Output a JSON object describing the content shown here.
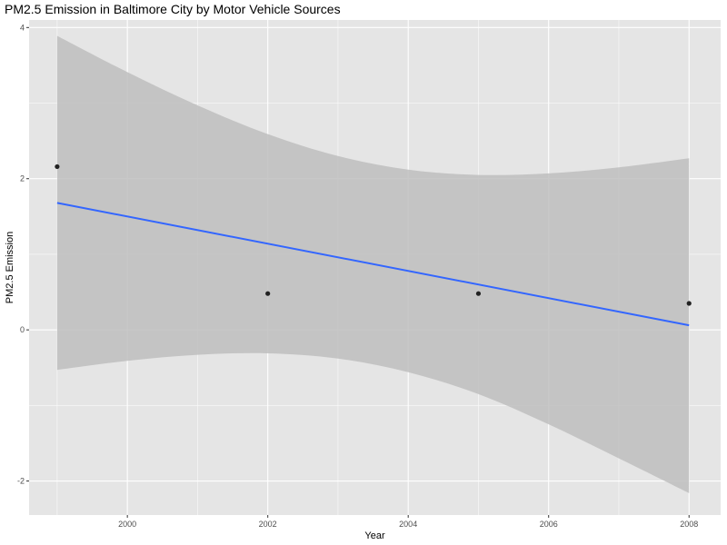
{
  "chart_data": {
    "type": "scatter",
    "title": "PM2.5 Emission in Baltimore City by Motor Vehicle Sources",
    "xlabel": "Year",
    "ylabel": "PM2.5 Emission",
    "x_ticks": [
      2000,
      2002,
      2004,
      2006,
      2008
    ],
    "y_ticks": [
      -2,
      0,
      2,
      4
    ],
    "xlim": [
      1998.6,
      2008.45
    ],
    "ylim": [
      -2.45,
      4.1
    ],
    "grid": true,
    "points": {
      "x": [
        1999,
        2002,
        2005,
        2008
      ],
      "y": [
        2.16,
        0.48,
        0.48,
        0.35
      ]
    },
    "trend_line": {
      "x": [
        1999,
        2008
      ],
      "y": [
        1.68,
        0.06
      ]
    },
    "confidence_band": {
      "x": [
        1999,
        2000,
        2001,
        2002,
        2003,
        2004,
        2005,
        2006,
        2007,
        2008
      ],
      "lower": [
        -0.53,
        -0.41,
        -0.33,
        -0.31,
        -0.38,
        -0.56,
        -0.85,
        -1.25,
        -1.7,
        -2.16
      ],
      "upper": [
        3.89,
        3.41,
        2.97,
        2.59,
        2.3,
        2.12,
        2.05,
        2.07,
        2.15,
        2.27
      ]
    },
    "colors": {
      "panel": "#e5e5e5",
      "grid": "#ffffff",
      "band": "#bebebe",
      "line": "#3366ff",
      "point": "#222222"
    }
  }
}
